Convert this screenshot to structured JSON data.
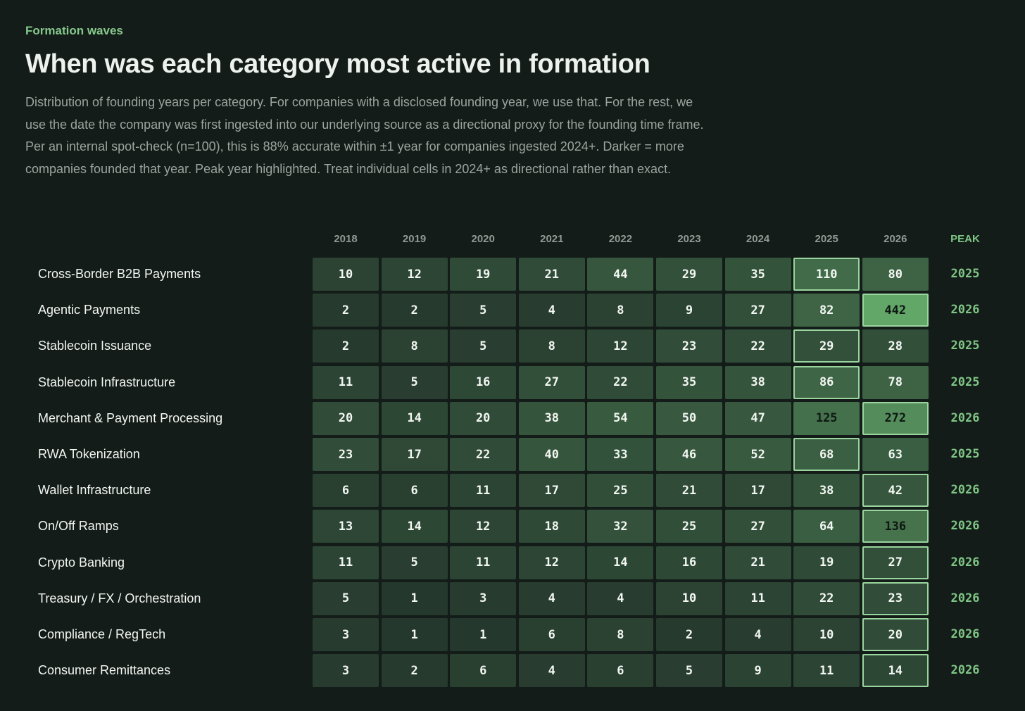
{
  "header": {
    "eyebrow": "Formation waves",
    "title": "When was each category most active in formation",
    "description": "Distribution of founding years per category. For companies with a disclosed founding year, we use that. For the rest, we use the date the company was first ingested into our underlying source as a directional proxy for the founding time frame. Per an internal spot-check (n=100), this is 88% accurate within ±1 year for companies ingested 2024+. Darker = more companies founded that year. Peak year highlighted. Treat individual cells in 2024+ as directional rather than exact."
  },
  "colors": {
    "background": "#131c18",
    "accent": "#7fc585",
    "peak_border": "#9ad49e"
  },
  "chart_data": {
    "type": "heatmap",
    "title": "When was each category most active in formation",
    "x": [
      "2018",
      "2019",
      "2020",
      "2021",
      "2022",
      "2023",
      "2024",
      "2025",
      "2026"
    ],
    "peak_label": "PEAK",
    "rows": [
      {
        "category": "Cross-Border B2B Payments",
        "values": [
          10,
          12,
          19,
          21,
          44,
          29,
          35,
          110,
          80
        ],
        "peak": "2025"
      },
      {
        "category": "Agentic Payments",
        "values": [
          2,
          2,
          5,
          4,
          8,
          9,
          27,
          82,
          442
        ],
        "peak": "2026"
      },
      {
        "category": "Stablecoin Issuance",
        "values": [
          2,
          8,
          5,
          8,
          12,
          23,
          22,
          29,
          28
        ],
        "peak": "2025"
      },
      {
        "category": "Stablecoin Infrastructure",
        "values": [
          11,
          5,
          16,
          27,
          22,
          35,
          38,
          86,
          78
        ],
        "peak": "2025"
      },
      {
        "category": "Merchant & Payment Processing",
        "values": [
          20,
          14,
          20,
          38,
          54,
          50,
          47,
          125,
          272
        ],
        "peak": "2026"
      },
      {
        "category": "RWA Tokenization",
        "values": [
          23,
          17,
          22,
          40,
          33,
          46,
          52,
          68,
          63
        ],
        "peak": "2025"
      },
      {
        "category": "Wallet Infrastructure",
        "values": [
          6,
          6,
          11,
          17,
          25,
          21,
          17,
          38,
          42
        ],
        "peak": "2026"
      },
      {
        "category": "On/Off Ramps",
        "values": [
          13,
          14,
          12,
          18,
          32,
          25,
          27,
          64,
          136
        ],
        "peak": "2026"
      },
      {
        "category": "Crypto Banking",
        "values": [
          11,
          5,
          11,
          12,
          14,
          16,
          21,
          19,
          27
        ],
        "peak": "2026"
      },
      {
        "category": "Treasury / FX / Orchestration",
        "values": [
          5,
          1,
          3,
          4,
          4,
          10,
          11,
          22,
          23
        ],
        "peak": "2026"
      },
      {
        "category": "Compliance / RegTech",
        "values": [
          3,
          1,
          1,
          6,
          8,
          2,
          4,
          10,
          20
        ],
        "peak": "2026"
      },
      {
        "category": "Consumer Remittances",
        "values": [
          3,
          2,
          6,
          4,
          6,
          5,
          9,
          11,
          14
        ],
        "peak": "2026"
      }
    ]
  }
}
